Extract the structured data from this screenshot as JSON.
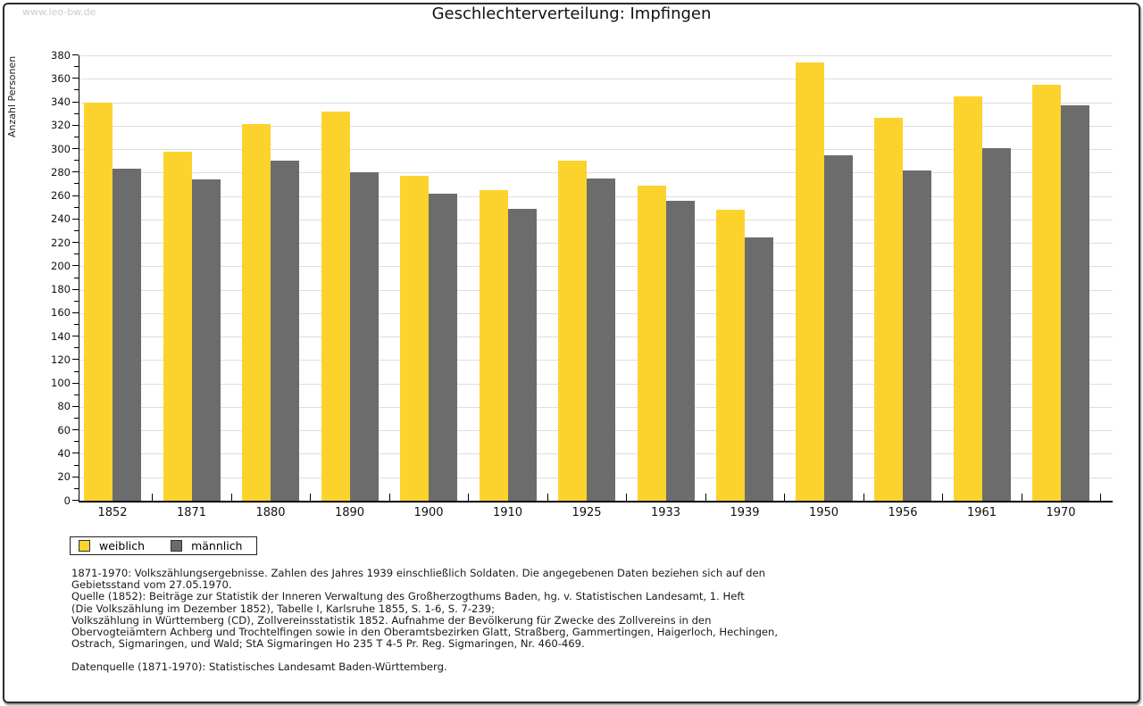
{
  "watermark": "www.leo-bw.de",
  "title": "Geschlechterverteilung: Impfingen",
  "chart_data": {
    "type": "bar",
    "title": "Geschlechterverteilung: Impfingen",
    "ylabel": "Anzahl Personen",
    "xlabel": "",
    "categories": [
      "1852",
      "1871",
      "1880",
      "1890",
      "1900",
      "1910",
      "1925",
      "1933",
      "1939",
      "1950",
      "1956",
      "1961",
      "1970"
    ],
    "series": [
      {
        "name": "weiblich",
        "color": "#FCD32D",
        "values": [
          340,
          298,
          321,
          332,
          277,
          265,
          290,
          269,
          248,
          374,
          327,
          345,
          355
        ]
      },
      {
        "name": "männlich",
        "color": "#6C6C6C",
        "values": [
          283,
          274,
          290,
          280,
          262,
          249,
          275,
          256,
          225,
          295,
          282,
          301,
          337
        ]
      }
    ],
    "ylim": [
      0,
      380
    ],
    "ytick_step": 20,
    "minor_tick_step": 10,
    "grid": true,
    "legend_position": "bottom-left"
  },
  "legend": {
    "items": [
      {
        "label": "weiblich",
        "color": "#FCD32D"
      },
      {
        "label": "männlich",
        "color": "#6C6C6C"
      }
    ]
  },
  "footnotes": {
    "lines": [
      "1871-1970: Volkszählungsergebnisse. Zahlen des Jahres 1939 einschließlich Soldaten. Die angegebenen Daten beziehen sich auf den",
      "Gebietsstand vom 27.05.1970.",
      "Quelle (1852): Beiträge zur Statistik der Inneren Verwaltung des Großherzogthums Baden, hg. v. Statistischen Landesamt, 1. Heft",
      "(Die Volkszählung im Dezember 1852), Tabelle I, Karlsruhe 1855, S. 1-6, S. 7-239;",
      "Volkszählung in Württemberg (CD), Zollvereinsstatistik 1852. Aufnahme der Bevölkerung für Zwecke des Zollvereins in den",
      "Obervogteiämtern Achberg und Trochtelfingen sowie in den Oberamtsbezirken Glatt, Straßberg, Gammertingen, Haigerloch, Hechingen,",
      "Ostrach, Sigmaringen, und Wald; StA Sigmaringen Ho 235 T 4-5 Pr. Reg. Sigmaringen, Nr. 460-469."
    ],
    "datasource": "Datenquelle (1871-1970): Statistisches Landesamt Baden-Württemberg."
  },
  "colors": {
    "female_bar": "#FCD32D",
    "male_bar": "#6C6C6C",
    "gridline": "#DEDEDE",
    "axis": "#000000",
    "watermark": "#CBCBCB",
    "frame_border": "#2D2D2D"
  }
}
